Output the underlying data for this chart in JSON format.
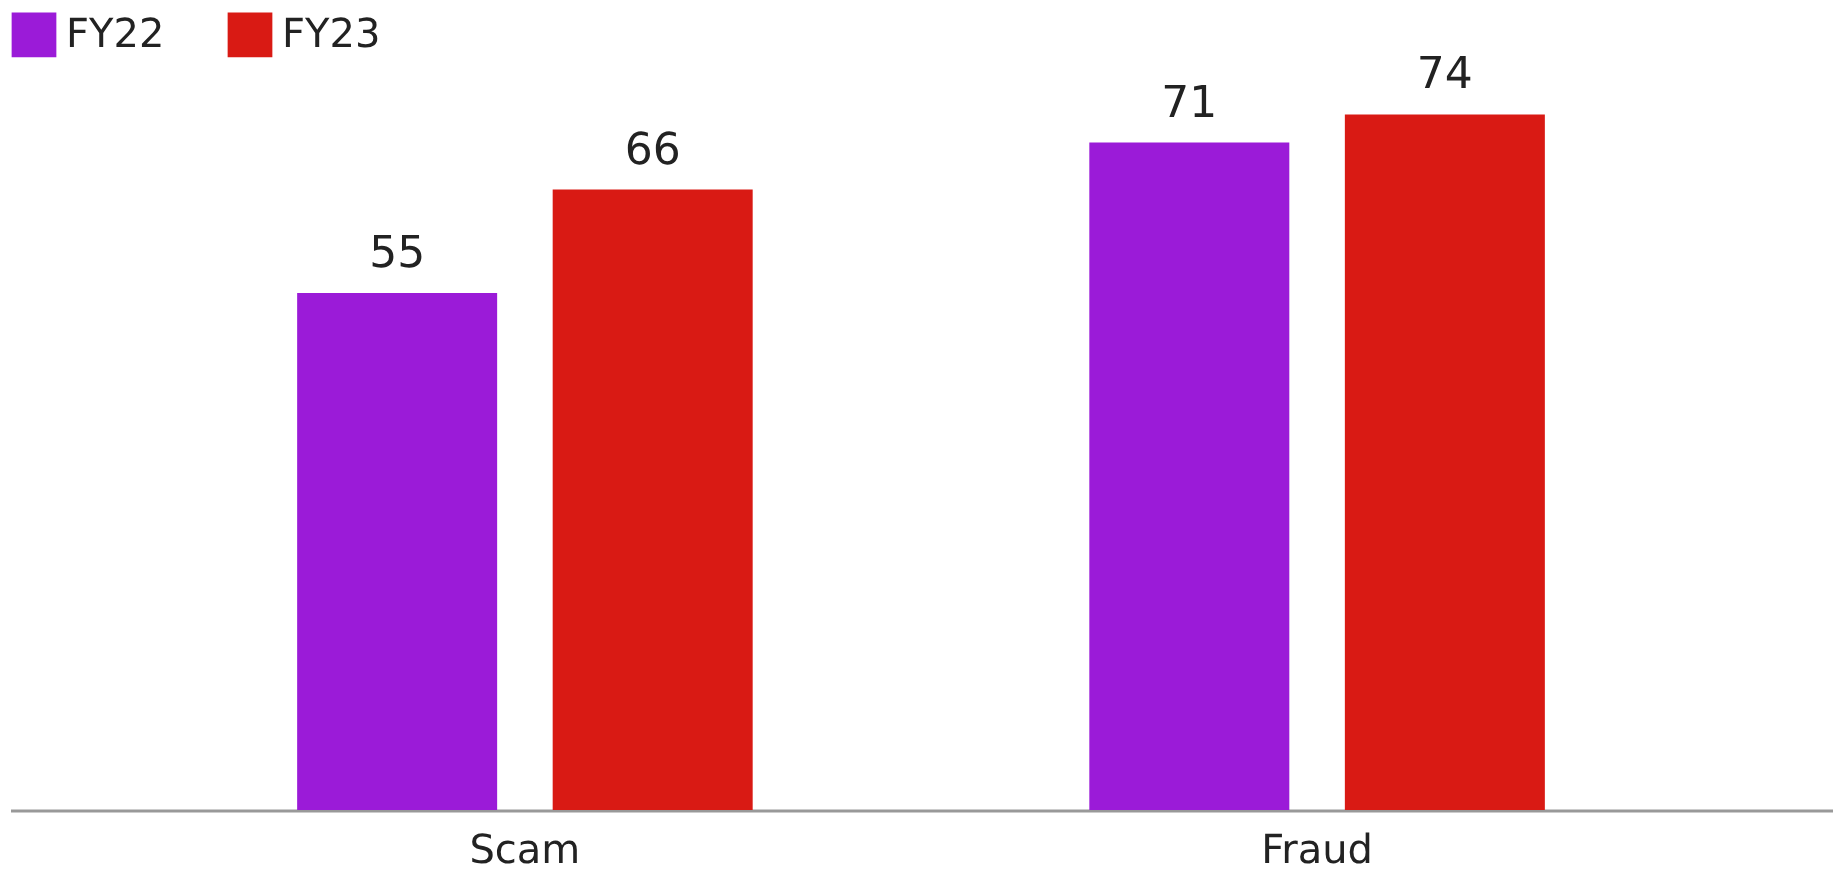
{
  "chart_data": {
    "type": "bar",
    "categories": [
      "Scam",
      "Fraud"
    ],
    "series": [
      {
        "name": "FY22",
        "color": "#9b1bd8",
        "values": [
          55,
          71
        ]
      },
      {
        "name": "FY23",
        "color": "#d91a14",
        "values": [
          66,
          74
        ]
      }
    ],
    "tick_labels": "x",
    "data_labels": true,
    "legend": "top left"
  }
}
